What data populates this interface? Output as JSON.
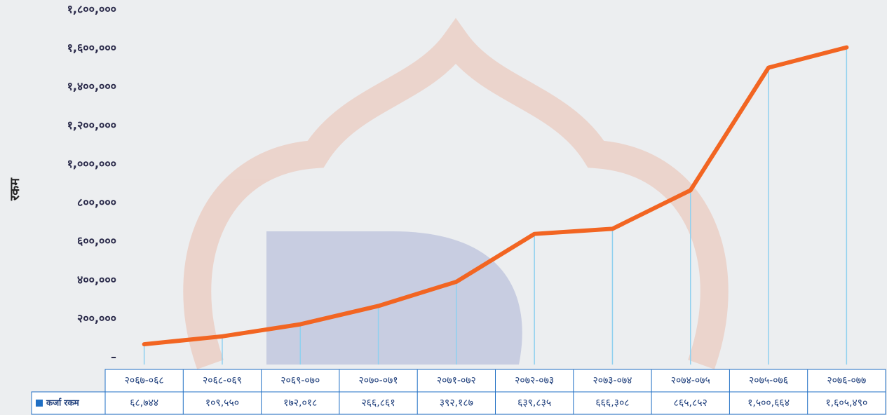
{
  "chart_data": {
    "type": "line",
    "y_axis_label": "रकम",
    "categories": [
      "२०६७-०६८",
      "२०६८-०६९",
      "२०६९-०७०",
      "२०७०-०७१",
      "२०७१-०७२",
      "२०७२-०७३",
      "२०७३-०७४",
      "२०७४-०७५",
      "२०७५-०७६",
      "२०७६-०७७"
    ],
    "series": [
      {
        "name": "कर्जा रकम",
        "color": "#f26522",
        "legend_color": "#1f6fc4",
        "values": [
          68744,
          109550,
          172018,
          266861,
          392187,
          639835,
          666308,
          865852,
          1500664,
          1605490
        ],
        "value_labels": [
          "६८,७४४",
          "१०९,५५०",
          "१७२,०१८",
          "२६६,८६१",
          "३९२,१८७",
          "६३९,८३५",
          "६६६,३०८",
          "८६५,८५२",
          "१,५००,६६४",
          "१,६०५,४९०"
        ]
      }
    ],
    "ylim": [
      0,
      1800000
    ],
    "yticks": [
      {
        "value": 0,
        "label": "–"
      },
      {
        "value": 200000,
        "label": "२००,०००"
      },
      {
        "value": 400000,
        "label": "४००,०००"
      },
      {
        "value": 600000,
        "label": "६००,०००"
      },
      {
        "value": 800000,
        "label": "८००,०००"
      },
      {
        "value": 1000000,
        "label": "१,०००,०००"
      },
      {
        "value": 1200000,
        "label": "१,२००,०००"
      },
      {
        "value": 1400000,
        "label": "१,४००,०००"
      },
      {
        "value": 1600000,
        "label": "१,६००,०००"
      },
      {
        "value": 1800000,
        "label": "१,८००,०००"
      }
    ],
    "drop_lines": true
  }
}
